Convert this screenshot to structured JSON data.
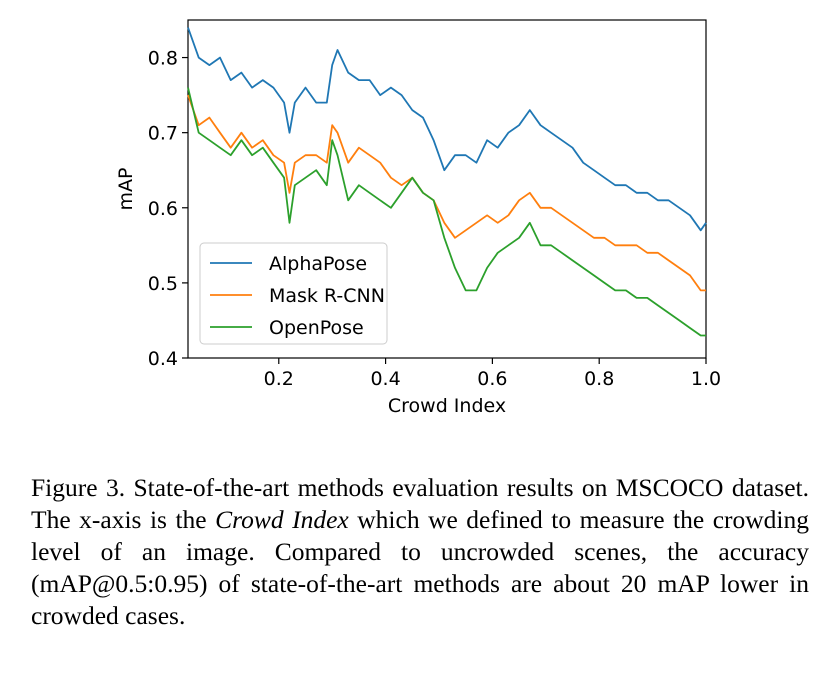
{
  "chart_data": {
    "type": "line",
    "xlabel": "Crowd Index",
    "ylabel": "mAP",
    "xlim": [
      0.03,
      1.0
    ],
    "ylim": [
      0.4,
      0.85
    ],
    "xticks": [
      "0.2",
      "0.4",
      "0.6",
      "0.8",
      "1.0"
    ],
    "yticks": [
      "0.4",
      "0.5",
      "0.6",
      "0.7",
      "0.8"
    ],
    "legend_position": "lower-left",
    "series": [
      {
        "name": "AlphaPose",
        "color": "#1f77b4",
        "x": [
          0.03,
          0.05,
          0.07,
          0.09,
          0.11,
          0.13,
          0.15,
          0.17,
          0.19,
          0.21,
          0.22,
          0.23,
          0.25,
          0.27,
          0.29,
          0.3,
          0.31,
          0.33,
          0.35,
          0.37,
          0.39,
          0.41,
          0.43,
          0.45,
          0.47,
          0.49,
          0.51,
          0.53,
          0.55,
          0.57,
          0.59,
          0.61,
          0.63,
          0.65,
          0.67,
          0.69,
          0.71,
          0.73,
          0.75,
          0.77,
          0.79,
          0.81,
          0.83,
          0.85,
          0.87,
          0.89,
          0.91,
          0.93,
          0.95,
          0.97,
          0.99,
          1.0
        ],
        "values": [
          0.84,
          0.8,
          0.79,
          0.8,
          0.77,
          0.78,
          0.76,
          0.77,
          0.76,
          0.74,
          0.7,
          0.74,
          0.76,
          0.74,
          0.74,
          0.79,
          0.81,
          0.78,
          0.77,
          0.77,
          0.75,
          0.76,
          0.75,
          0.73,
          0.72,
          0.69,
          0.65,
          0.67,
          0.67,
          0.66,
          0.69,
          0.68,
          0.7,
          0.71,
          0.73,
          0.71,
          0.7,
          0.69,
          0.68,
          0.66,
          0.65,
          0.64,
          0.63,
          0.63,
          0.62,
          0.62,
          0.61,
          0.61,
          0.6,
          0.59,
          0.57,
          0.58
        ]
      },
      {
        "name": "Mask R-CNN",
        "color": "#ff7f0e",
        "x": [
          0.03,
          0.05,
          0.07,
          0.09,
          0.11,
          0.13,
          0.15,
          0.17,
          0.19,
          0.21,
          0.22,
          0.23,
          0.25,
          0.27,
          0.29,
          0.3,
          0.31,
          0.33,
          0.35,
          0.37,
          0.39,
          0.41,
          0.43,
          0.45,
          0.47,
          0.49,
          0.51,
          0.53,
          0.55,
          0.57,
          0.59,
          0.61,
          0.63,
          0.65,
          0.67,
          0.69,
          0.71,
          0.73,
          0.75,
          0.77,
          0.79,
          0.81,
          0.83,
          0.85,
          0.87,
          0.89,
          0.91,
          0.93,
          0.95,
          0.97,
          0.99,
          1.0
        ],
        "values": [
          0.75,
          0.71,
          0.72,
          0.7,
          0.68,
          0.7,
          0.68,
          0.69,
          0.67,
          0.66,
          0.62,
          0.66,
          0.67,
          0.67,
          0.66,
          0.71,
          0.7,
          0.66,
          0.68,
          0.67,
          0.66,
          0.64,
          0.63,
          0.64,
          0.62,
          0.61,
          0.58,
          0.56,
          0.57,
          0.58,
          0.59,
          0.58,
          0.59,
          0.61,
          0.62,
          0.6,
          0.6,
          0.59,
          0.58,
          0.57,
          0.56,
          0.56,
          0.55,
          0.55,
          0.55,
          0.54,
          0.54,
          0.53,
          0.52,
          0.51,
          0.49,
          0.49
        ]
      },
      {
        "name": "OpenPose",
        "color": "#2ca02c",
        "x": [
          0.03,
          0.05,
          0.07,
          0.09,
          0.11,
          0.13,
          0.15,
          0.17,
          0.19,
          0.21,
          0.22,
          0.23,
          0.25,
          0.27,
          0.29,
          0.3,
          0.31,
          0.33,
          0.35,
          0.37,
          0.39,
          0.41,
          0.43,
          0.45,
          0.47,
          0.49,
          0.51,
          0.53,
          0.55,
          0.57,
          0.59,
          0.61,
          0.63,
          0.65,
          0.67,
          0.69,
          0.71,
          0.73,
          0.75,
          0.77,
          0.79,
          0.81,
          0.83,
          0.85,
          0.87,
          0.89,
          0.91,
          0.93,
          0.95,
          0.97,
          0.99,
          1.0
        ],
        "values": [
          0.76,
          0.7,
          0.69,
          0.68,
          0.67,
          0.69,
          0.67,
          0.68,
          0.66,
          0.64,
          0.58,
          0.63,
          0.64,
          0.65,
          0.63,
          0.69,
          0.67,
          0.61,
          0.63,
          0.62,
          0.61,
          0.6,
          0.62,
          0.64,
          0.62,
          0.61,
          0.56,
          0.52,
          0.49,
          0.49,
          0.52,
          0.54,
          0.55,
          0.56,
          0.58,
          0.55,
          0.55,
          0.54,
          0.53,
          0.52,
          0.51,
          0.5,
          0.49,
          0.49,
          0.48,
          0.48,
          0.47,
          0.46,
          0.45,
          0.44,
          0.43,
          0.43
        ]
      }
    ]
  },
  "caption": {
    "part1": "Figure 3. State-of-the-art methods evaluation results on MSCOCO dataset. The x-axis is the ",
    "emphasis": "Crowd Index",
    "part2": " which we defined to measure the crowding level of an image. Compared to uncrowded scenes, the accuracy (mAP@0.5:0.95) of state-of-the-art methods are about 20 mAP lower in crowded cases."
  }
}
